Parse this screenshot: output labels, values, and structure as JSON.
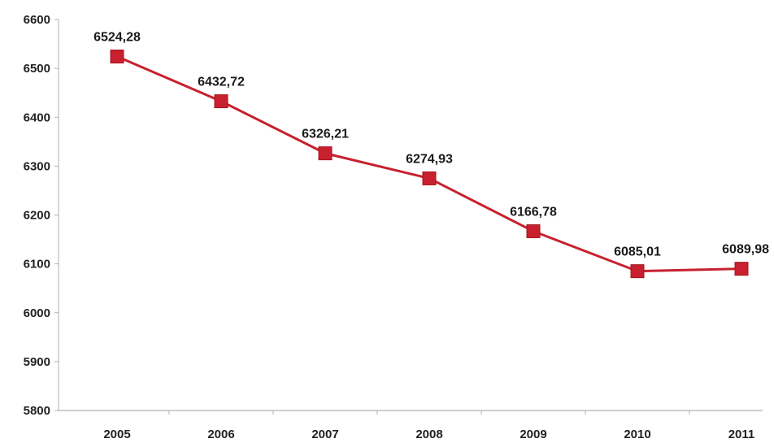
{
  "chart_data": {
    "type": "line",
    "title": "",
    "xlabel": "",
    "ylabel": "",
    "categories": [
      "2005",
      "2006",
      "2007",
      "2008",
      "2009",
      "2010",
      "2011"
    ],
    "series": [
      {
        "values": [
          6524.28,
          6432.72,
          6326.21,
          6274.93,
          6166.78,
          6085.01,
          6089.98
        ],
        "labels": [
          "6524,28",
          "6432,72",
          "6326,21",
          "6274,93",
          "6166,78",
          "6085,01",
          "6089,98"
        ],
        "color": "#c8202e",
        "marker": "square"
      }
    ],
    "ylim": [
      5800,
      6600
    ],
    "yticks": [
      "5800",
      "5900",
      "6000",
      "6100",
      "6200",
      "6300",
      "6400",
      "6500",
      "6600"
    ],
    "grid": false,
    "legend": "none"
  },
  "colors": {
    "line": "#c8202e",
    "axis": "#b0b0b0",
    "background": "#ffffff"
  }
}
